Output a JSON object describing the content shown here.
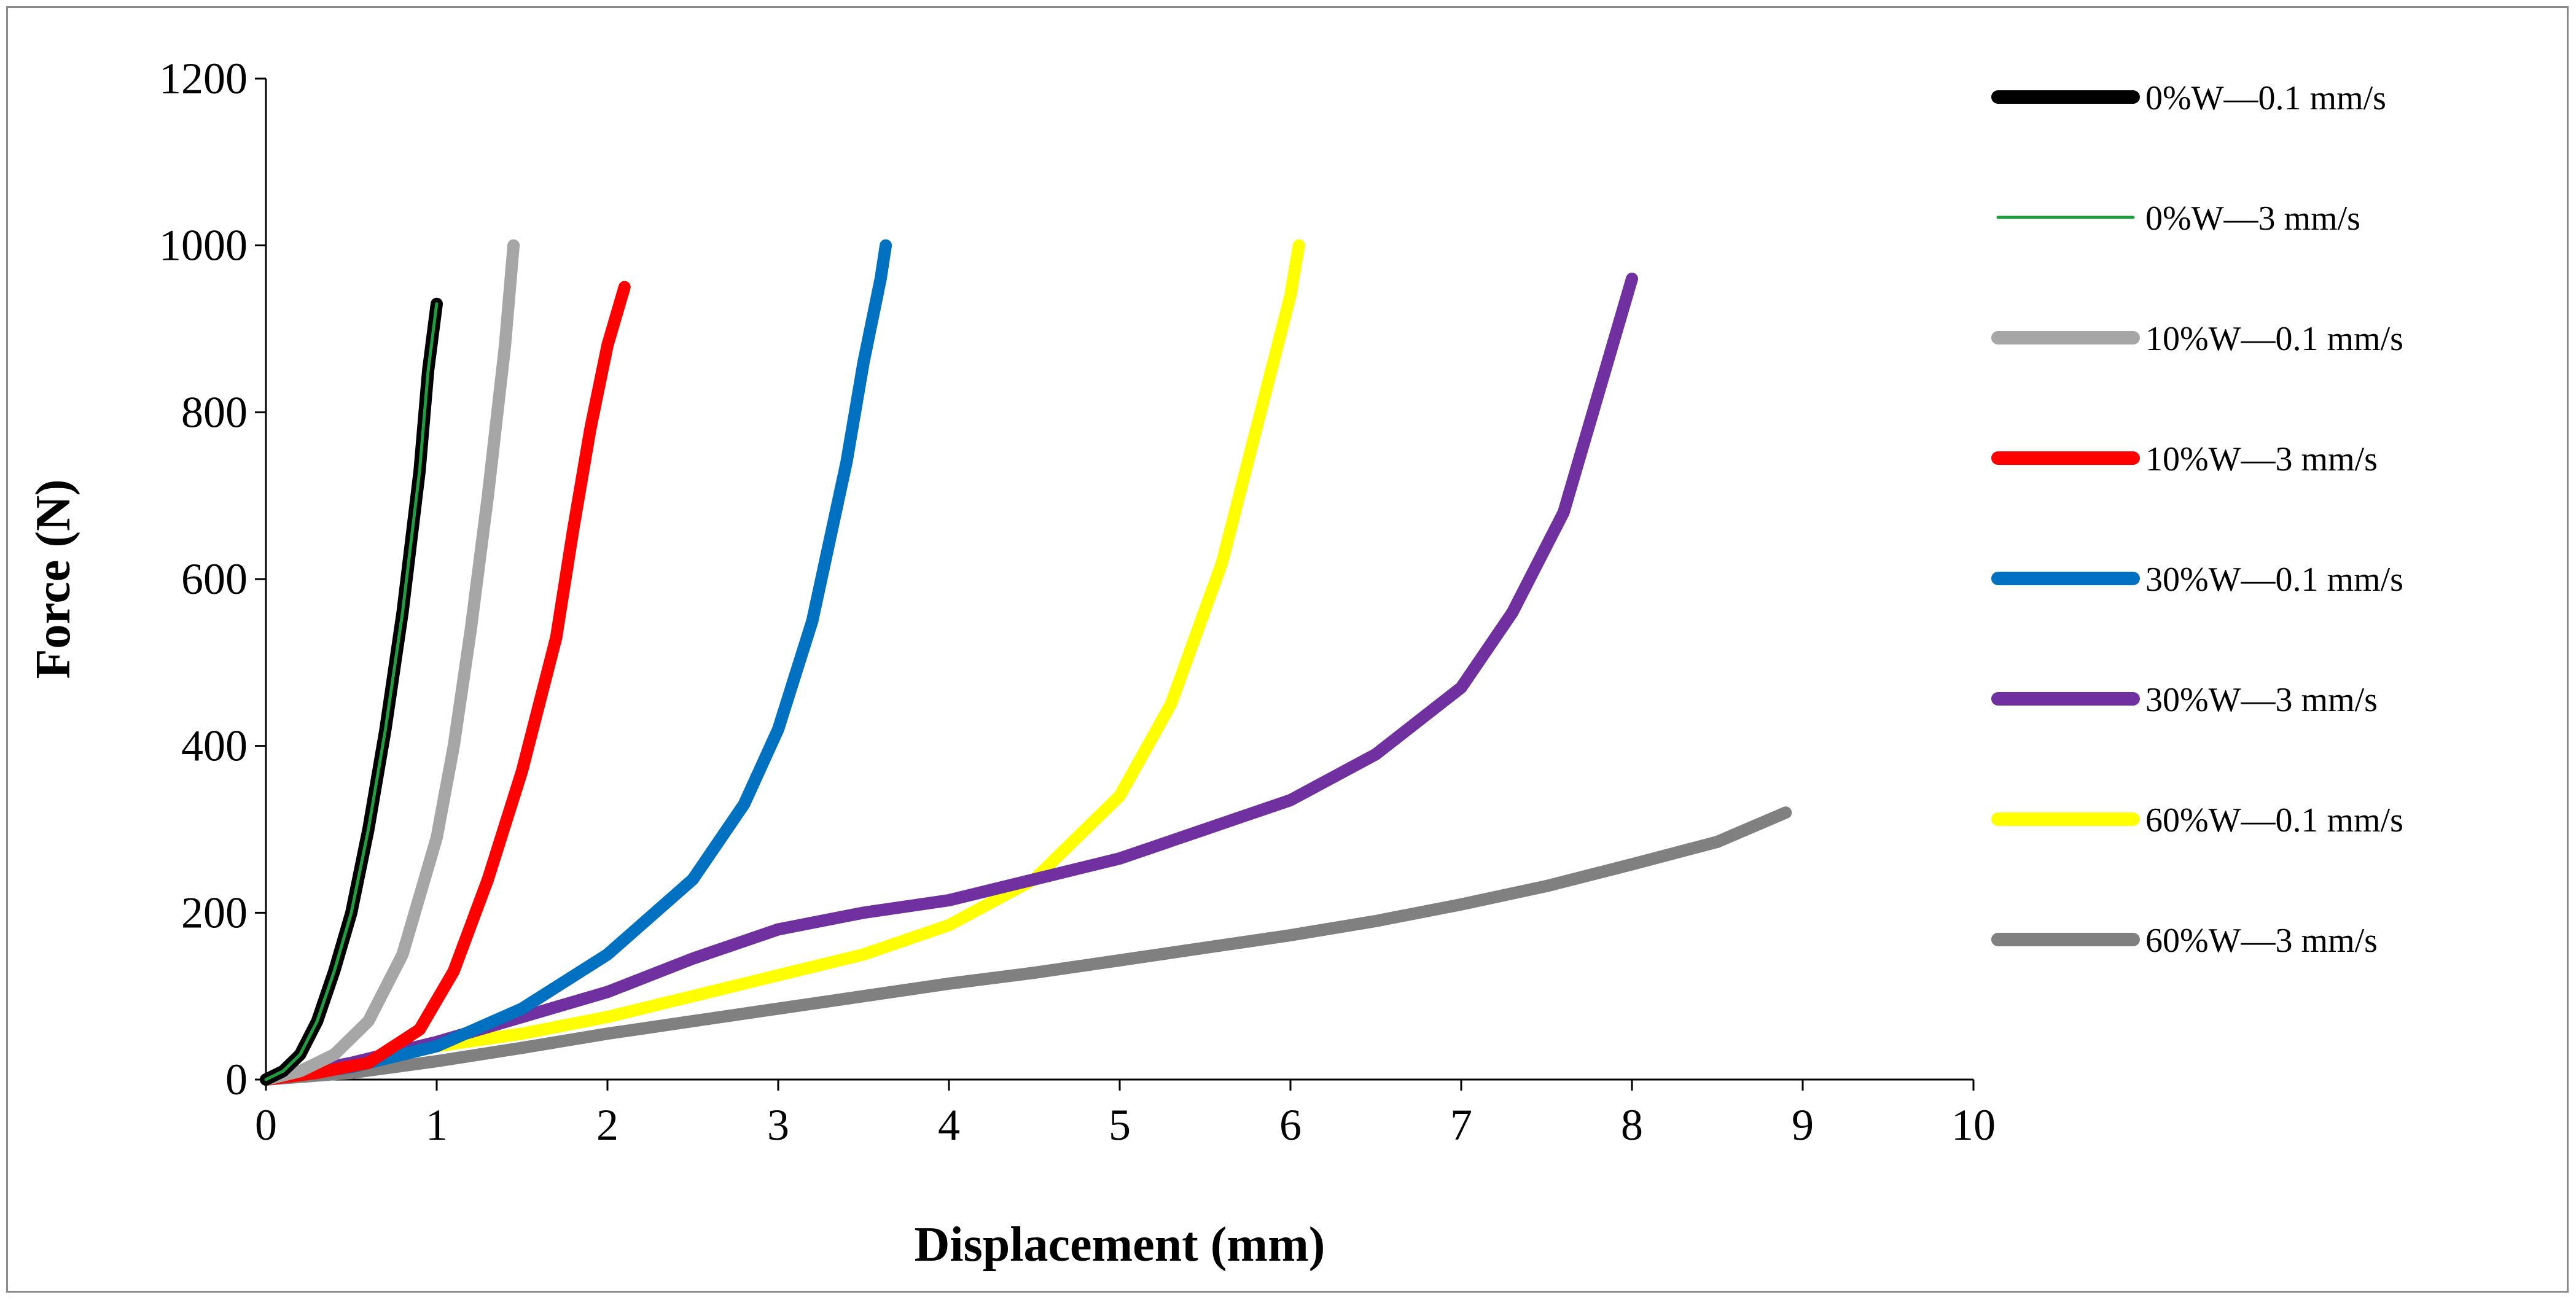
{
  "chart_data": {
    "type": "line",
    "title": "",
    "xlabel": "Displacement (mm)",
    "ylabel": "Force (N)",
    "xlim": [
      0,
      10
    ],
    "ylim": [
      0,
      1200
    ],
    "xticks": [
      0,
      1,
      2,
      3,
      4,
      5,
      6,
      7,
      8,
      9,
      10
    ],
    "yticks": [
      0,
      200,
      400,
      600,
      800,
      1000,
      1200
    ],
    "grid": false,
    "legend_position": "right",
    "series": [
      {
        "name": "0%W—0.1 mm/s",
        "color": "#000000",
        "width": "thick",
        "x": [
          0,
          0.1,
          0.2,
          0.3,
          0.4,
          0.5,
          0.6,
          0.7,
          0.8,
          0.9,
          0.95,
          1.0
        ],
        "y": [
          0,
          10,
          30,
          70,
          130,
          200,
          300,
          420,
          560,
          730,
          850,
          930
        ]
      },
      {
        "name": "0%W—3 mm/s",
        "color": "#1f9e3f",
        "width": "thin",
        "x": [
          0,
          0.1,
          0.2,
          0.3,
          0.4,
          0.5,
          0.6,
          0.7,
          0.8,
          0.9,
          0.95,
          1.0
        ],
        "y": [
          0,
          10,
          30,
          70,
          130,
          200,
          300,
          420,
          560,
          730,
          850,
          930
        ]
      },
      {
        "name": "10%W—0.1 mm/s",
        "color": "#a6a6a6",
        "width": "thick",
        "x": [
          0,
          0.2,
          0.4,
          0.6,
          0.8,
          1.0,
          1.1,
          1.2,
          1.3,
          1.4,
          1.45
        ],
        "y": [
          0,
          10,
          30,
          70,
          150,
          290,
          400,
          540,
          700,
          880,
          1000
        ]
      },
      {
        "name": "10%W—3 mm/s",
        "color": "#ff0000",
        "width": "thick",
        "x": [
          0,
          0.3,
          0.6,
          0.9,
          1.1,
          1.3,
          1.5,
          1.7,
          1.8,
          1.9,
          2.0,
          2.1
        ],
        "y": [
          0,
          8,
          20,
          60,
          130,
          240,
          370,
          530,
          660,
          780,
          880,
          950
        ]
      },
      {
        "name": "30%W—0.1 mm/s",
        "color": "#0070c0",
        "width": "thick",
        "x": [
          0,
          0.5,
          1.0,
          1.5,
          2.0,
          2.5,
          2.8,
          3.0,
          3.2,
          3.4,
          3.5,
          3.6,
          3.63
        ],
        "y": [
          0,
          15,
          40,
          85,
          150,
          240,
          330,
          420,
          550,
          740,
          860,
          960,
          1000
        ]
      },
      {
        "name": "30%W—3 mm/s",
        "color": "#7030a0",
        "width": "thick",
        "x": [
          0,
          0.5,
          1.0,
          1.5,
          2.0,
          2.5,
          3.0,
          3.5,
          4.0,
          4.5,
          5.0,
          5.5,
          6.0,
          6.5,
          7.0,
          7.3,
          7.6,
          7.8,
          8.0
        ],
        "y": [
          0,
          20,
          45,
          75,
          105,
          145,
          180,
          200,
          215,
          240,
          265,
          300,
          335,
          390,
          470,
          560,
          680,
          820,
          960
        ]
      },
      {
        "name": "60%W—0.1 mm/s",
        "color": "#ffff00",
        "width": "thick",
        "x": [
          0,
          0.5,
          1.0,
          1.5,
          2.0,
          2.5,
          3.0,
          3.5,
          4.0,
          4.5,
          5.0,
          5.3,
          5.6,
          5.8,
          6.0,
          6.05
        ],
        "y": [
          0,
          20,
          40,
          55,
          75,
          100,
          125,
          150,
          185,
          240,
          340,
          450,
          620,
          780,
          940,
          1000
        ]
      },
      {
        "name": "60%W—3 mm/s",
        "color": "#808080",
        "width": "thick",
        "x": [
          0,
          0.5,
          1.0,
          1.5,
          2.0,
          2.5,
          3.0,
          3.5,
          4.0,
          4.5,
          5.0,
          5.5,
          6.0,
          6.5,
          7.0,
          7.5,
          8.0,
          8.5,
          8.9
        ],
        "y": [
          0,
          8,
          22,
          38,
          55,
          70,
          85,
          100,
          115,
          128,
          143,
          158,
          173,
          190,
          210,
          232,
          258,
          285,
          320
        ]
      }
    ]
  }
}
